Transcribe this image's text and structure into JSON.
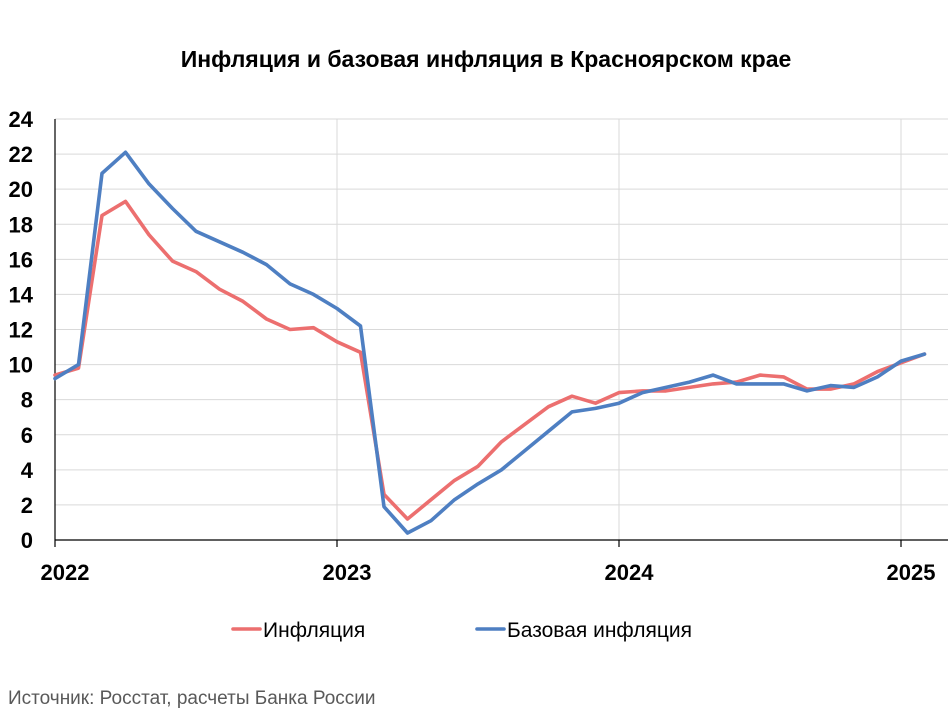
{
  "source_note": "Источник: Росстат, расчеты Банка России",
  "colors": {
    "inflation": "#ec6f6f",
    "core": "#4e7fc2"
  },
  "chart_data": {
    "type": "line",
    "title": "Инфляция и базовая инфляция в Красноярском крае",
    "xlabel": "",
    "ylabel": "",
    "ylim": [
      0,
      24
    ],
    "yticks": [
      0,
      2,
      4,
      6,
      8,
      10,
      12,
      14,
      16,
      18,
      20,
      22,
      24
    ],
    "xlim": [
      "2022-01",
      "2025-03"
    ],
    "xticks": [
      {
        "x": "2022-01",
        "label": "2022"
      },
      {
        "x": "2023-01",
        "label": "2023"
      },
      {
        "x": "2024-01",
        "label": "2024"
      },
      {
        "x": "2025-01",
        "label": "2025"
      }
    ],
    "grid": {
      "horizontal": true,
      "vertical": true
    },
    "legend": "bottom-center",
    "x": [
      "2022-01",
      "2022-02",
      "2022-03",
      "2022-04",
      "2022-05",
      "2022-06",
      "2022-07",
      "2022-08",
      "2022-09",
      "2022-10",
      "2022-11",
      "2022-12",
      "2023-01",
      "2023-02",
      "2023-03",
      "2023-04",
      "2023-05",
      "2023-06",
      "2023-07",
      "2023-08",
      "2023-09",
      "2023-10",
      "2023-11",
      "2023-12",
      "2024-01",
      "2024-02",
      "2024-03",
      "2024-04",
      "2024-05",
      "2024-06",
      "2024-07",
      "2024-08",
      "2024-09",
      "2024-10",
      "2024-11",
      "2024-12",
      "2025-01",
      "2025-02"
    ],
    "series": [
      {
        "name": "Инфляция",
        "color": "#ec6f6f",
        "values": [
          9.4,
          9.8,
          18.5,
          19.3,
          17.4,
          15.9,
          15.3,
          14.3,
          13.6,
          12.6,
          12.0,
          12.1,
          11.3,
          10.7,
          2.6,
          1.2,
          2.3,
          3.4,
          4.2,
          5.6,
          6.6,
          7.6,
          8.2,
          7.8,
          8.4,
          8.5,
          8.5,
          8.7,
          8.9,
          9.0,
          9.4,
          9.3,
          8.6,
          8.6,
          8.9,
          9.6,
          10.1,
          10.6
        ]
      },
      {
        "name": "Базовая инфляция",
        "color": "#4e7fc2",
        "values": [
          9.2,
          10.0,
          20.9,
          22.1,
          20.3,
          18.9,
          17.6,
          17.0,
          16.4,
          15.7,
          14.6,
          14.0,
          13.2,
          12.2,
          1.9,
          0.4,
          1.1,
          2.3,
          3.2,
          4.0,
          5.1,
          6.2,
          7.3,
          7.5,
          7.8,
          8.4,
          8.7,
          9.0,
          9.4,
          8.9,
          8.9,
          8.9,
          8.5,
          8.8,
          8.7,
          9.3,
          10.2,
          10.6
        ]
      }
    ]
  }
}
